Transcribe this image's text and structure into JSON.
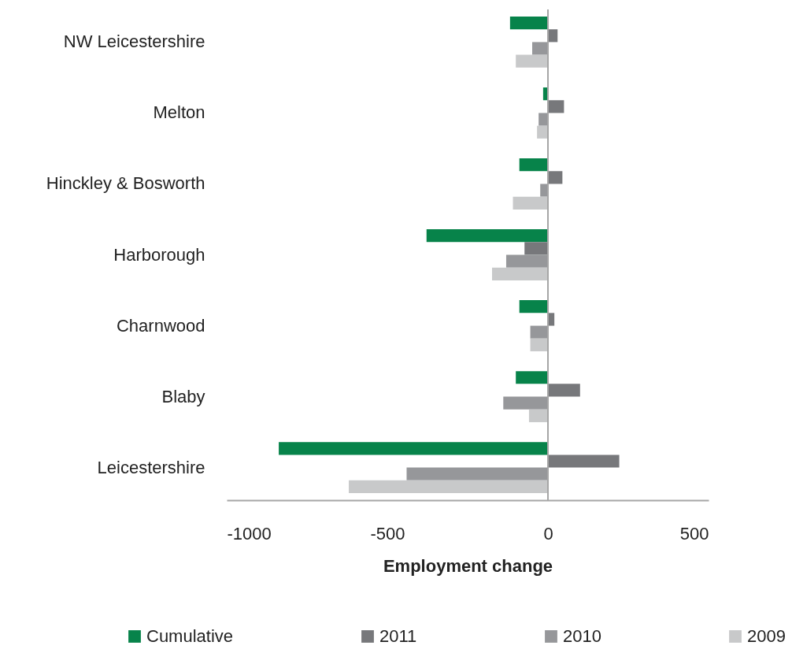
{
  "chart_data": {
    "type": "bar",
    "orientation": "horizontal",
    "xlabel": "Employment change",
    "categories": [
      "NW Leicestershire",
      "Melton",
      "Hinckley & Bosworth",
      "Harborough",
      "Charnwood",
      "Blaby",
      "Leicestershire"
    ],
    "series": [
      {
        "name": "Cumulative",
        "color": "#07834a",
        "values": [
          -118,
          -15,
          -89,
          -378,
          -89,
          -100,
          -838
        ]
      },
      {
        "name": "2011",
        "color": "#77787b",
        "values": [
          30,
          50,
          45,
          -73,
          20,
          100,
          222
        ]
      },
      {
        "name": "2010",
        "color": "#96979a",
        "values": [
          -49,
          -29,
          -24,
          -130,
          -55,
          -139,
          -440
        ]
      },
      {
        "name": "2009",
        "color": "#c8c9ca",
        "values": [
          -100,
          -34,
          -109,
          -174,
          -55,
          -59,
          -620
        ]
      }
    ],
    "xlim": [
      -1000,
      500
    ],
    "xticks": [
      {
        "value": -1000,
        "label": "-1000"
      },
      {
        "value": -500,
        "label": "-500"
      },
      0,
      500
    ],
    "grid": false,
    "legend": "bottom",
    "ref_lines": [
      {
        "axis": "x",
        "value": 0,
        "color": "#a6a6a6"
      }
    ]
  }
}
